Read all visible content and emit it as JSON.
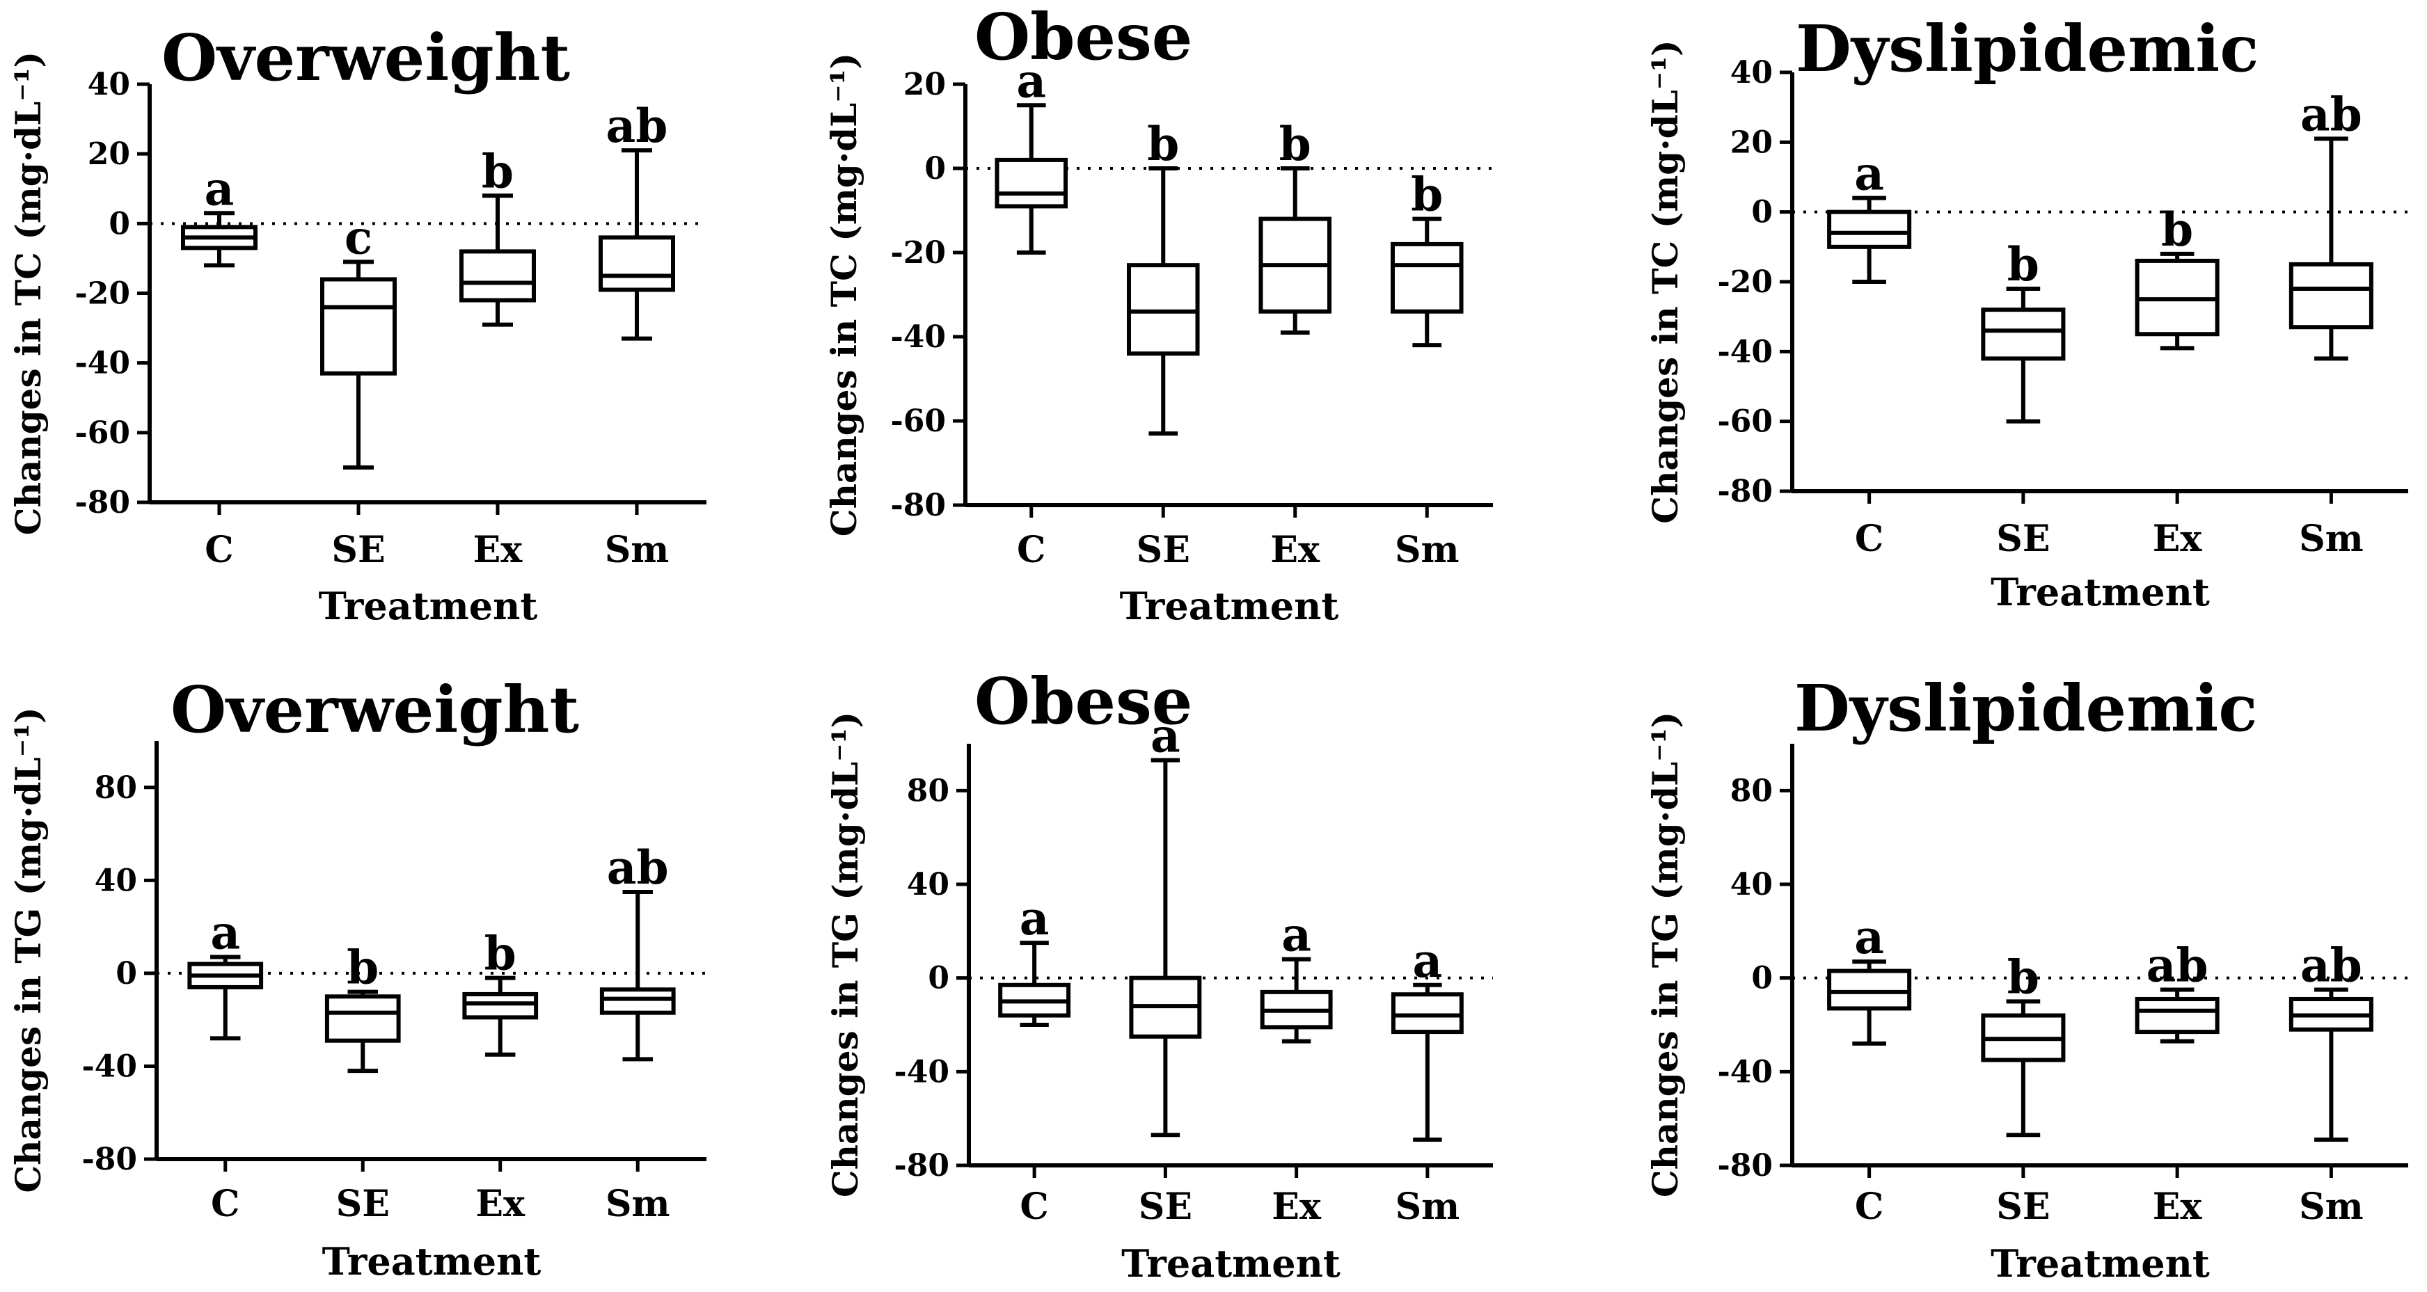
{
  "chart_data": [
    {
      "type": "box",
      "title": "Overweight",
      "xlabel": "Treatment",
      "ylabel": "Changes in TC (mg·dL⁻¹)",
      "ylim": [
        -80,
        40
      ],
      "yticks": [
        "40",
        "20",
        "0",
        "-20",
        "-40",
        "-60",
        "-80"
      ],
      "categories": [
        "C",
        "SE",
        "Ex",
        "Sm"
      ],
      "boxes": [
        {
          "min": -12,
          "q1": -7,
          "median": -4,
          "q3": -1,
          "max": 3,
          "label": "a"
        },
        {
          "min": -70,
          "q1": -43,
          "median": -24,
          "q3": -16,
          "max": -11,
          "label": "c"
        },
        {
          "min": -29,
          "q1": -22,
          "median": -17,
          "q3": -8,
          "max": 8,
          "label": "b"
        },
        {
          "min": -33,
          "q1": -19,
          "median": -15,
          "q3": -4,
          "max": 21,
          "label": "ab"
        }
      ]
    },
    {
      "type": "box",
      "title": "Obese",
      "xlabel": "Treatment",
      "ylabel": "Changes in TC (mg·dL⁻¹)",
      "ylim": [
        -80,
        20
      ],
      "yticks": [
        "20",
        "0",
        "-20",
        "-40",
        "-60",
        "-80"
      ],
      "categories": [
        "C",
        "SE",
        "Ex",
        "Sm"
      ],
      "boxes": [
        {
          "min": -20,
          "q1": -9,
          "median": -6,
          "q3": 2,
          "max": 15,
          "label": "a"
        },
        {
          "min": -63,
          "q1": -44,
          "median": -34,
          "q3": -23,
          "max": 0,
          "label": "b"
        },
        {
          "min": -39,
          "q1": -34,
          "median": -23,
          "q3": -12,
          "max": 0,
          "label": "b"
        },
        {
          "min": -42,
          "q1": -34,
          "median": -23,
          "q3": -18,
          "max": -12,
          "label": "b"
        }
      ]
    },
    {
      "type": "box",
      "title": "Dyslipidemic",
      "xlabel": "Treatment",
      "ylabel": "Changes in TC (mg·dL⁻¹)",
      "ylim": [
        -80,
        40
      ],
      "yticks": [
        "40",
        "20",
        "0",
        "-20",
        "-40",
        "-60",
        "-80"
      ],
      "categories": [
        "C",
        "SE",
        "Ex",
        "Sm"
      ],
      "boxes": [
        {
          "min": -20,
          "q1": -10,
          "median": -6,
          "q3": 0,
          "max": 4,
          "label": "a"
        },
        {
          "min": -60,
          "q1": -42,
          "median": -34,
          "q3": -28,
          "max": -22,
          "label": "b"
        },
        {
          "min": -39,
          "q1": -35,
          "median": -25,
          "q3": -14,
          "max": -12,
          "label": "b"
        },
        {
          "min": -42,
          "q1": -33,
          "median": -22,
          "q3": -15,
          "max": 21,
          "label": "ab"
        }
      ]
    },
    {
      "type": "box",
      "title": "Overweight",
      "xlabel": "Treatment",
      "ylabel": "Changes in TG (mg·dL⁻¹)",
      "ylim": [
        -80,
        100
      ],
      "yticks": [
        "80",
        "40",
        "0",
        "-40",
        "-80"
      ],
      "categories": [
        "C",
        "SE",
        "Ex",
        "Sm"
      ],
      "boxes": [
        {
          "min": -28,
          "q1": -6,
          "median": -1,
          "q3": 4,
          "max": 7,
          "label": "a"
        },
        {
          "min": -42,
          "q1": -29,
          "median": -17,
          "q3": -10,
          "max": -8,
          "label": "b"
        },
        {
          "min": -35,
          "q1": -19,
          "median": -13,
          "q3": -9,
          "max": -2,
          "label": "b"
        },
        {
          "min": -37,
          "q1": -17,
          "median": -11,
          "q3": -7,
          "max": 35,
          "label": "ab"
        }
      ]
    },
    {
      "type": "box",
      "title": "Obese",
      "xlabel": "Treatment",
      "ylabel": "Changes in TG (mg·dL⁻¹)",
      "ylim": [
        -80,
        100
      ],
      "yticks": [
        "80",
        "40",
        "0",
        "-40",
        "-80"
      ],
      "categories": [
        "C",
        "SE",
        "Ex",
        "Sm"
      ],
      "boxes": [
        {
          "min": -20,
          "q1": -16,
          "median": -10,
          "q3": -3,
          "max": 15,
          "label": "a"
        },
        {
          "min": -67,
          "q1": -25,
          "median": -12,
          "q3": 0,
          "max": 93,
          "label": "a"
        },
        {
          "min": -27,
          "q1": -21,
          "median": -14,
          "q3": -6,
          "max": 8,
          "label": "a"
        },
        {
          "min": -69,
          "q1": -23,
          "median": -16,
          "q3": -7,
          "max": -3,
          "label": "a"
        }
      ]
    },
    {
      "type": "box",
      "title": "Dyslipidemic",
      "xlabel": "Treatment",
      "ylabel": "Changes in TG (mg·dL⁻¹)",
      "ylim": [
        -80,
        100
      ],
      "yticks": [
        "80",
        "40",
        "0",
        "-40",
        "-80"
      ],
      "categories": [
        "C",
        "SE",
        "Ex",
        "Sm"
      ],
      "boxes": [
        {
          "min": -28,
          "q1": -13,
          "median": -6,
          "q3": 3,
          "max": 7,
          "label": "a"
        },
        {
          "min": -67,
          "q1": -35,
          "median": -26,
          "q3": -16,
          "max": -10,
          "label": "b"
        },
        {
          "min": -27,
          "q1": -23,
          "median": -14,
          "q3": -9,
          "max": -5,
          "label": "ab"
        },
        {
          "min": -69,
          "q1": -22,
          "median": -16,
          "q3": -9,
          "max": -5,
          "label": "ab"
        }
      ]
    }
  ]
}
